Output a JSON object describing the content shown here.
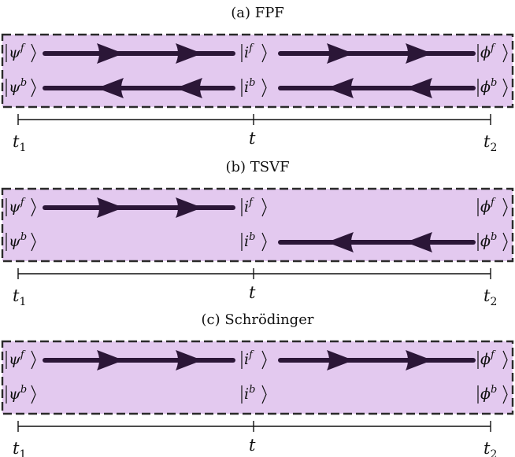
{
  "colors": {
    "panel_fill": "#e3c9ef",
    "arrow": "#2b1637",
    "border": "#2a2a2a",
    "axis": "#111111"
  },
  "panels": [
    {
      "title": "(a) FPF",
      "forward": [
        "left",
        "right"
      ],
      "backward": [
        "left",
        "right"
      ]
    },
    {
      "title": "(b) TSVF",
      "forward": [
        "left"
      ],
      "backward": [
        "right"
      ]
    },
    {
      "title": "(c) Schrödinger",
      "forward": [
        "left",
        "right"
      ],
      "backward": []
    }
  ],
  "kets": {
    "psi": "ψ",
    "i": "i",
    "phi": "ϕ",
    "forward_sup": "f",
    "backward_sup": "b"
  },
  "timeline": {
    "t1": "t",
    "t1_sub": "1",
    "t": "t",
    "t2": "t",
    "t2_sub": "2"
  }
}
